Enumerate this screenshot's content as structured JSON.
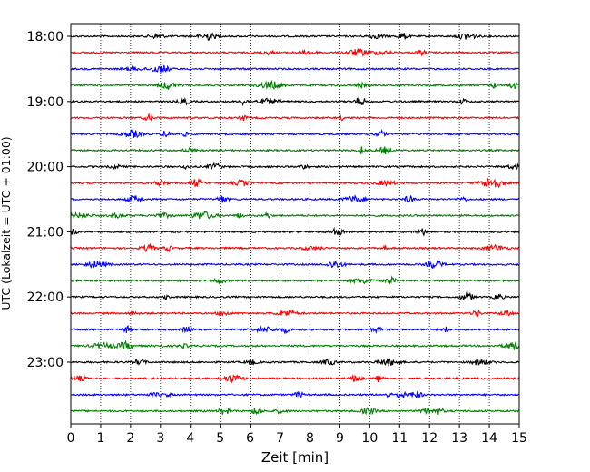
{
  "chart_data": {
    "type": "line",
    "title": "",
    "xlabel": "Zeit  [min]",
    "ylabel": "UTC (Lokalzeit = UTC + 01:00)",
    "xlim": [
      0,
      15
    ],
    "x_ticks": [
      0,
      1,
      2,
      3,
      4,
      5,
      6,
      7,
      8,
      9,
      10,
      11,
      12,
      13,
      14,
      15
    ],
    "x_tick_labels": [
      "0",
      "1",
      "2",
      "3",
      "4",
      "5",
      "6",
      "7",
      "8",
      "9",
      "10",
      "11",
      "12",
      "13",
      "14",
      "15"
    ],
    "y_ticks": [
      "18:00",
      "19:00",
      "20:00",
      "21:00",
      "22:00",
      "23:00"
    ],
    "grid": "vertical-dotted",
    "legend": "none",
    "colors": {
      "trace_cycle": [
        "#000000",
        "#ff0000",
        "#0000ff",
        "#008000"
      ],
      "grid": "#000000",
      "axes": "#000000"
    },
    "series": [
      {
        "start": "18:00",
        "color": "#000000"
      },
      {
        "start": "18:15",
        "color": "#ff0000"
      },
      {
        "start": "18:30",
        "color": "#0000ff"
      },
      {
        "start": "18:45",
        "color": "#008000"
      },
      {
        "start": "19:00",
        "color": "#000000"
      },
      {
        "start": "19:15",
        "color": "#ff0000"
      },
      {
        "start": "19:30",
        "color": "#0000ff"
      },
      {
        "start": "19:45",
        "color": "#008000"
      },
      {
        "start": "20:00",
        "color": "#000000"
      },
      {
        "start": "20:15",
        "color": "#ff0000"
      },
      {
        "start": "20:30",
        "color": "#0000ff"
      },
      {
        "start": "20:45",
        "color": "#008000"
      },
      {
        "start": "21:00",
        "color": "#000000"
      },
      {
        "start": "21:15",
        "color": "#ff0000"
      },
      {
        "start": "21:30",
        "color": "#0000ff"
      },
      {
        "start": "21:45",
        "color": "#008000"
      },
      {
        "start": "22:00",
        "color": "#000000"
      },
      {
        "start": "22:15",
        "color": "#ff0000"
      },
      {
        "start": "22:30",
        "color": "#0000ff"
      },
      {
        "start": "22:45",
        "color": "#008000"
      },
      {
        "start": "23:00",
        "color": "#000000"
      },
      {
        "start": "23:15",
        "color": "#ff0000"
      },
      {
        "start": "23:30",
        "color": "#0000ff"
      },
      {
        "start": "23:45",
        "color": "#008000"
      }
    ]
  }
}
